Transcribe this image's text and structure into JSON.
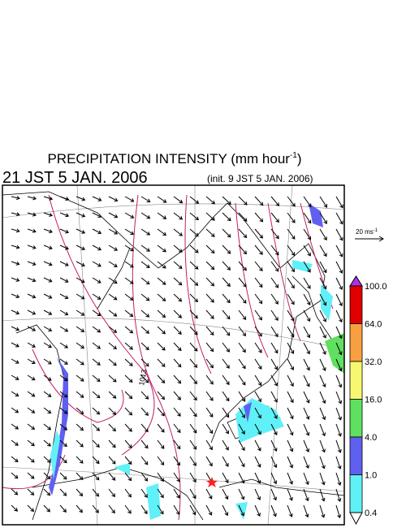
{
  "header": {
    "title": "PRECIPITATION INTENSITY (mm hour",
    "title_sup": "-1",
    "title_end": ")",
    "valid_time": "21 JST 5 JAN. 2006",
    "init_time": "(init. 9 JST 5 JAN. 2006)"
  },
  "map": {
    "isobar_label": "1013"
  },
  "reference_vector": {
    "label": "20 ms",
    "label_sup": "-1"
  },
  "colorbar": {
    "labels": [
      "100.0",
      "64.0",
      "32.0",
      "16.0",
      "4.0",
      "1.0",
      "0.4"
    ],
    "colors": [
      "#b030e0",
      "#e00000",
      "#f8a040",
      "#f8f870",
      "#60e060",
      "#6060f0",
      "#60f0f8",
      "#ffffff"
    ]
  }
}
